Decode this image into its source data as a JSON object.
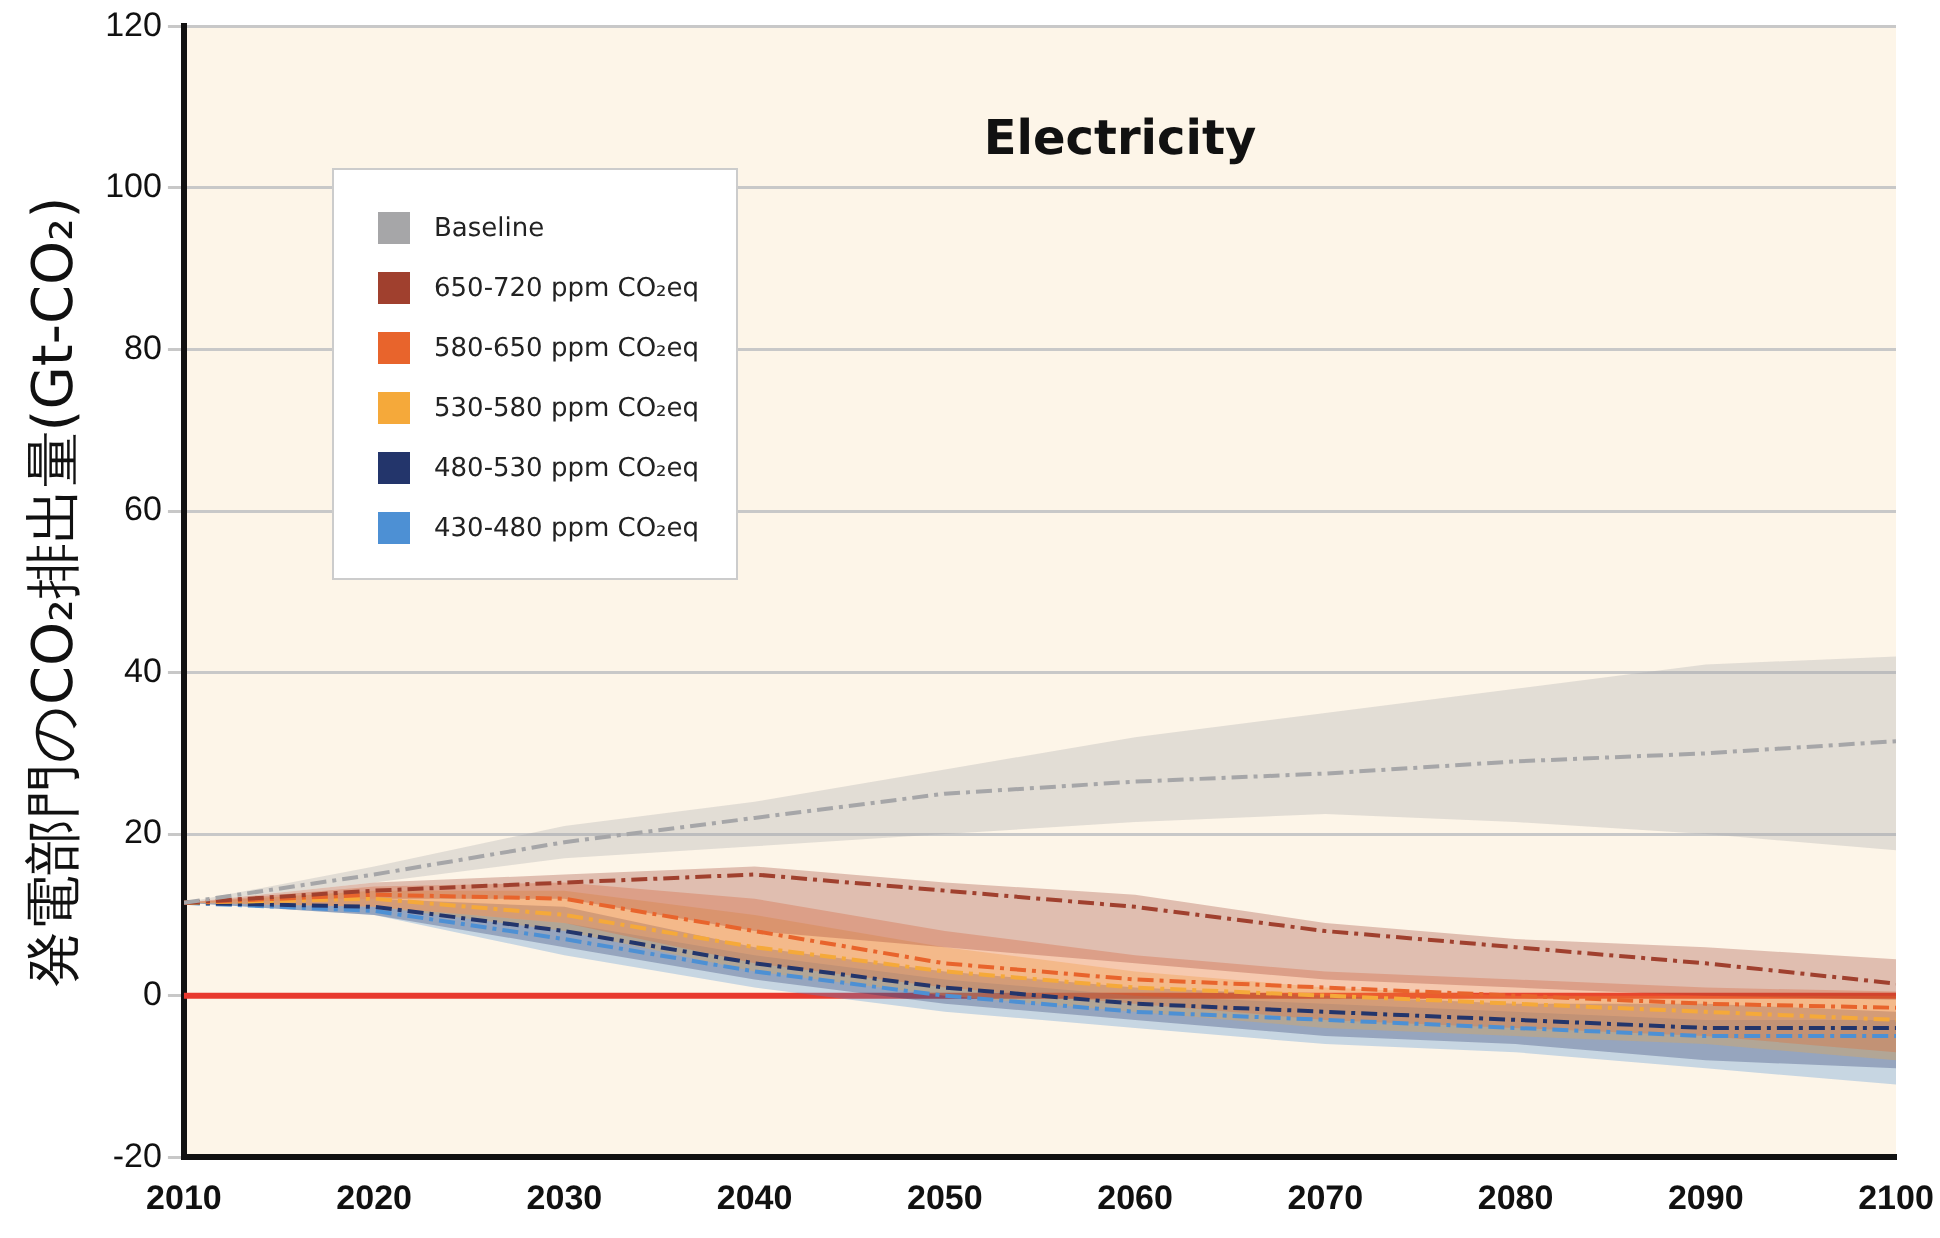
{
  "chart_data": {
    "type": "line",
    "title": "Electricity",
    "ylabel": "発電部門のCO₂排出量(Gt-CO₂)",
    "x": [
      2010,
      2020,
      2030,
      2040,
      2050,
      2060,
      2070,
      2080,
      2090,
      2100
    ],
    "xlim": [
      2010,
      2100
    ],
    "xticks": [
      2010,
      2020,
      2030,
      2040,
      2050,
      2060,
      2070,
      2080,
      2090,
      2100
    ],
    "ylim": [
      -20,
      120
    ],
    "yticks": [
      -20,
      0,
      20,
      40,
      60,
      80,
      100,
      120
    ],
    "grid": "y",
    "legend": "top left",
    "line_style": "dashed",
    "marker": "none",
    "ref_lines": [
      {
        "axis": "y",
        "value": 0,
        "color": "#e8392e"
      }
    ],
    "series": [
      {
        "name": "Baseline",
        "color": "#a6a6a8",
        "values": [
          11.5,
          15,
          19,
          22,
          25,
          26.5,
          27.5,
          29,
          30,
          31.5
        ],
        "lower": [
          11.5,
          14,
          17,
          18.5,
          20,
          21.5,
          22.5,
          21.5,
          20,
          18
        ],
        "upper": [
          11.5,
          16,
          21,
          24,
          28,
          32,
          35,
          38,
          41,
          42
        ]
      },
      {
        "name": "650-720 ppm CO₂eq",
        "color": "#a0402e",
        "values": [
          11.5,
          13,
          14,
          15,
          13,
          11,
          8,
          6,
          4,
          1.5
        ],
        "lower": [
          11.5,
          12,
          12,
          8,
          6,
          4,
          2,
          1,
          0,
          -0.5
        ],
        "upper": [
          11.5,
          14,
          15,
          16,
          14,
          12.5,
          9,
          7,
          6,
          4.5
        ]
      },
      {
        "name": "580-650 ppm CO₂eq",
        "color": "#e8642c",
        "values": [
          11.5,
          12.5,
          12,
          8,
          4,
          2,
          1,
          0,
          -1,
          -1.5
        ],
        "lower": [
          11.5,
          11,
          9,
          4,
          1,
          -1,
          -3,
          -4,
          -5,
          -7
        ],
        "upper": [
          11.5,
          13.5,
          14,
          12,
          8,
          5,
          3,
          2,
          1,
          0.5
        ]
      },
      {
        "name": "530-580 ppm CO₂eq",
        "color": "#f5a93a",
        "values": [
          11.5,
          12,
          10,
          6,
          3,
          1,
          0,
          -1,
          -2,
          -3
        ],
        "lower": [
          11.5,
          11,
          8,
          3,
          0,
          -2,
          -4,
          -5,
          -6,
          -8
        ],
        "upper": [
          11.5,
          13,
          13,
          10,
          6,
          3,
          1,
          0,
          0,
          0
        ]
      },
      {
        "name": "480-530 ppm CO₂eq",
        "color": "#23356b",
        "values": [
          11.5,
          11,
          8,
          4,
          1,
          -1,
          -2,
          -3,
          -4,
          -4
        ],
        "lower": [
          11.5,
          10,
          6,
          2,
          -1,
          -3,
          -5,
          -6,
          -8,
          -9
        ],
        "upper": [
          11.5,
          12,
          11,
          6,
          3,
          1,
          0,
          -1,
          -1,
          -2
        ]
      },
      {
        "name": "430-480 ppm CO₂eq",
        "color": "#4d90d4",
        "values": [
          11.5,
          10.5,
          7,
          3,
          0,
          -2,
          -3,
          -4,
          -5,
          -5
        ],
        "lower": [
          11.5,
          10,
          5,
          1,
          -2,
          -4,
          -6,
          -7,
          -9,
          -11
        ],
        "upper": [
          11.5,
          11,
          9,
          5,
          2,
          0,
          -1,
          -2,
          -3,
          -3
        ]
      }
    ]
  }
}
